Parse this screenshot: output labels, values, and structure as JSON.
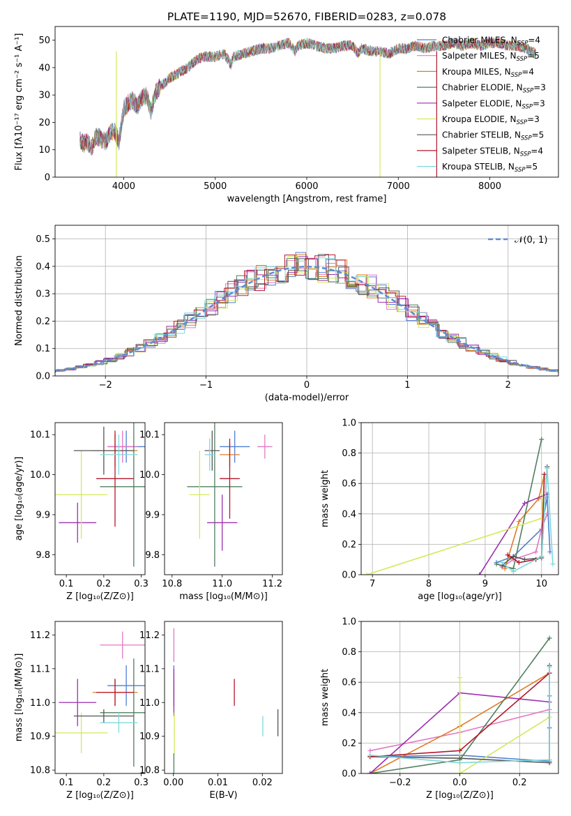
{
  "figure_title": "PLATE=1190, MJD=52670, FIBERID=0283, z=0.078",
  "colors": {
    "chabrier_miles": "#4c7fd4",
    "salpeter_miles": "#e377c2",
    "kroupa_miles": "#e07b28",
    "chabrier_elodie": "#4f7f5f",
    "salpeter_elodie": "#9b2fae",
    "kroupa_elodie": "#d4e95a",
    "chabrier_stelib": "#555555",
    "salpeter_stelib": "#b2182b",
    "kroupa_stelib": "#7fd8dc",
    "normal": "#5b8bd6"
  },
  "chart_data": [
    {
      "id": "spectrum",
      "type": "line",
      "title": "PLATE=1190, MJD=52670, FIBERID=0283, z=0.078",
      "xlabel": "wavelength [Angstrom, rest frame]",
      "ylabel": "Flux [fλ10⁻¹⁷ erg cm⁻² s⁻¹ A⁻¹]",
      "xlim": [
        3250,
        8750
      ],
      "ylim": [
        0,
        55
      ],
      "xticks": [
        "4000",
        "5000",
        "6000",
        "7000",
        "8000"
      ],
      "yticks": [
        "0",
        "10",
        "20",
        "30",
        "40",
        "50"
      ],
      "legend_position": "right",
      "x": [
        3520,
        3560,
        3600,
        3650,
        3700,
        3750,
        3800,
        3850,
        3900,
        3950,
        4000,
        4050,
        4100,
        4150,
        4200,
        4250,
        4300,
        4350,
        4400,
        4500,
        4600,
        4700,
        4800,
        4900,
        5000,
        5100,
        5170,
        5200,
        5300,
        5400,
        5500,
        5600,
        5700,
        5800,
        5870,
        5900,
        6000,
        6100,
        6200,
        6300,
        6400,
        6500,
        6563,
        6600,
        6700,
        6800,
        6900,
        7000,
        7100,
        7200,
        7300,
        7400,
        7500,
        7600,
        7700,
        7800,
        7900,
        8000,
        8100,
        8200,
        8300,
        8400,
        8500
      ],
      "y": [
        14,
        12,
        13,
        11,
        15,
        14,
        13,
        16,
        17,
        13,
        25,
        27,
        28,
        26,
        29,
        30,
        24,
        31,
        33,
        36,
        38,
        40,
        43,
        44,
        44,
        45,
        41,
        44,
        45,
        46,
        47,
        47,
        48,
        49,
        46,
        48,
        49,
        48,
        47,
        47,
        48,
        48,
        45,
        47,
        46,
        46,
        45,
        47,
        47,
        48,
        47,
        48,
        48,
        49,
        48,
        49,
        48,
        49,
        49,
        48,
        48,
        47,
        45
      ],
      "series": [
        {
          "name": "Chabrier MILES, N_SSP=4",
          "key": "chabrier_miles"
        },
        {
          "name": "Salpeter MILES, N_SSP=5",
          "key": "salpeter_miles"
        },
        {
          "name": "Kroupa MILES, N_SSP=4",
          "key": "kroupa_miles"
        },
        {
          "name": "Chabrier ELODIE, N_SSP=3",
          "key": "chabrier_elodie"
        },
        {
          "name": "Salpeter ELODIE, N_SSP=3",
          "key": "salpeter_elodie"
        },
        {
          "name": "Kroupa ELODIE, N_SSP=3",
          "key": "kroupa_elodie"
        },
        {
          "name": "Chabrier STELIB, N_SSP=5",
          "key": "chabrier_stelib"
        },
        {
          "name": "Salpeter STELIB, N_SSP=4",
          "key": "salpeter_stelib"
        },
        {
          "name": "Kroupa STELIB, N_SSP=5",
          "key": "kroupa_stelib"
        }
      ]
    },
    {
      "id": "residuals",
      "type": "bar",
      "xlabel": "(data-model)/error",
      "ylabel": "Normed distribution",
      "xlim": [
        -2.5,
        2.5
      ],
      "ylim": [
        0,
        0.55
      ],
      "xticks": [
        "−2",
        "−1",
        "0",
        "1",
        "2"
      ],
      "yticks": [
        "0.0",
        "0.1",
        "0.2",
        "0.3",
        "0.4",
        "0.5"
      ],
      "grid": true,
      "legend": "𝒩(0, 1)",
      "legend_position": "top-right",
      "bin_width": 0.1
    },
    {
      "id": "age_vs_Z",
      "type": "scatter",
      "xlabel": "Z [log₁₀(Z/Z⊙)]",
      "ylabel": "age  [log₁₀(age/yr)]",
      "xlim": [
        0.07,
        0.31
      ],
      "ylim": [
        9.75,
        10.13
      ],
      "xticks": [
        "0.1",
        "0.2",
        "0.3"
      ],
      "yticks": [
        "9.8",
        "9.9",
        "10.0",
        "10.1"
      ],
      "points": [
        {
          "key": "chabrier_miles",
          "x": 0.26,
          "xerr": 0.05,
          "y": 10.07,
          "yerr": 0.04
        },
        {
          "key": "salpeter_miles",
          "x": 0.25,
          "xerr": 0.04,
          "y": 10.07,
          "yerr": 0.04
        },
        {
          "key": "kroupa_miles",
          "x": 0.23,
          "xerr": 0.06,
          "y": 10.06,
          "yerr": 0.04
        },
        {
          "key": "chabrier_elodie",
          "x": 0.28,
          "xerr": 0.09,
          "y": 9.97,
          "yerr": 0.2
        },
        {
          "key": "salpeter_elodie",
          "x": 0.13,
          "xerr": 0.05,
          "y": 9.88,
          "yerr": 0.05
        },
        {
          "key": "kroupa_elodie",
          "x": 0.14,
          "xerr": 0.07,
          "y": 9.95,
          "yerr": 0.11
        },
        {
          "key": "chabrier_stelib",
          "x": 0.2,
          "xerr": 0.08,
          "y": 10.06,
          "yerr": 0.06
        },
        {
          "key": "salpeter_stelib",
          "x": 0.23,
          "xerr": 0.05,
          "y": 9.99,
          "yerr": 0.12
        },
        {
          "key": "kroupa_stelib",
          "x": 0.24,
          "xerr": 0.05,
          "y": 10.05,
          "yerr": 0.05
        }
      ]
    },
    {
      "id": "age_vs_mass",
      "type": "scatter",
      "xlabel": "mass [log₁₀(M/M⊙)]",
      "ylabel": "",
      "xlim": [
        10.77,
        11.24
      ],
      "ylim": [
        9.75,
        10.13
      ],
      "xticks": [
        "10.8",
        "11.0",
        "11.2"
      ],
      "yticks": [
        "9.8",
        "9.9",
        "10.0",
        "10.1"
      ],
      "points": [
        {
          "key": "chabrier_miles",
          "x": 11.05,
          "xerr": 0.06,
          "y": 10.07,
          "yerr": 0.04
        },
        {
          "key": "salpeter_miles",
          "x": 11.17,
          "xerr": 0.03,
          "y": 10.07,
          "yerr": 0.03
        },
        {
          "key": "kroupa_miles",
          "x": 11.03,
          "xerr": 0.04,
          "y": 10.05,
          "yerr": 0.03
        },
        {
          "key": "chabrier_elodie",
          "x": 10.97,
          "xerr": 0.11,
          "y": 9.97,
          "yerr": 0.2
        },
        {
          "key": "salpeter_elodie",
          "x": 11.0,
          "xerr": 0.06,
          "y": 9.88,
          "yerr": 0.07
        },
        {
          "key": "kroupa_elodie",
          "x": 10.91,
          "xerr": 0.04,
          "y": 9.95,
          "yerr": 0.11
        },
        {
          "key": "chabrier_stelib",
          "x": 10.96,
          "xerr": 0.03,
          "y": 10.06,
          "yerr": 0.05
        },
        {
          "key": "salpeter_stelib",
          "x": 11.03,
          "xerr": 0.04,
          "y": 9.99,
          "yerr": 0.1
        },
        {
          "key": "kroupa_stelib",
          "x": 10.95,
          "xerr": 0.02,
          "y": 10.05,
          "yerr": 0.04
        }
      ]
    },
    {
      "id": "weight_vs_age",
      "type": "line",
      "xlabel": "age  [log₁₀(age/yr)]",
      "ylabel": "mass weight",
      "xlim": [
        6.8,
        10.3
      ],
      "ylim": [
        0,
        1
      ],
      "xticks": [
        "7",
        "8",
        "9",
        "10"
      ],
      "yticks": [
        "0.0",
        "0.2",
        "0.4",
        "0.6",
        "0.8",
        "1.0"
      ],
      "grid": true,
      "series": [
        {
          "key": "chabrier_miles",
          "x": [
            9.2,
            9.5,
            10.0,
            10.1,
            10.15
          ],
          "y": [
            0.08,
            0.12,
            0.3,
            0.51,
            0.15
          ]
        },
        {
          "key": "salpeter_miles",
          "x": [
            9.3,
            9.5,
            9.9,
            10.0,
            10.1
          ],
          "y": [
            0.05,
            0.1,
            0.15,
            0.3,
            0.4
          ]
        },
        {
          "key": "kroupa_miles",
          "x": [
            9.35,
            9.6,
            9.95,
            10.05
          ],
          "y": [
            0.04,
            0.35,
            0.5,
            0.66
          ]
        },
        {
          "key": "chabrier_elodie",
          "x": [
            9.2,
            9.5,
            10.0
          ],
          "y": [
            0.07,
            0.04,
            0.89
          ]
        },
        {
          "key": "salpeter_elodie",
          "x": [
            8.9,
            9.7,
            10.1
          ],
          "y": [
            0.0,
            0.47,
            0.53
          ]
        },
        {
          "key": "kroupa_elodie",
          "x": [
            6.9,
            10.0,
            10.05
          ],
          "y": [
            0.0,
            0.37,
            0.63
          ]
        },
        {
          "key": "chabrier_stelib",
          "x": [
            9.3,
            9.5,
            9.7,
            10.0,
            10.1
          ],
          "y": [
            0.06,
            0.12,
            0.1,
            0.11,
            0.71
          ]
        },
        {
          "key": "salpeter_stelib",
          "x": [
            9.4,
            9.6,
            9.9,
            10.0,
            10.05
          ],
          "y": [
            0.13,
            0.08,
            0.1,
            0.12,
            0.66
          ]
        },
        {
          "key": "kroupa_stelib",
          "x": [
            9.3,
            9.5,
            10.0,
            10.1,
            10.2
          ],
          "y": [
            0.08,
            0.02,
            0.12,
            0.7,
            0.07
          ]
        }
      ]
    },
    {
      "id": "mass_vs_Z",
      "type": "scatter",
      "xlabel": "Z [log₁₀(Z/Z⊙)]",
      "ylabel": "mass [log₁₀(M/M⊙)]",
      "xlim": [
        0.07,
        0.31
      ],
      "ylim": [
        10.79,
        11.24
      ],
      "xticks": [
        "0.1",
        "0.2",
        "0.3"
      ],
      "yticks": [
        "10.8",
        "10.9",
        "11.0",
        "11.1",
        "11.2"
      ],
      "points": [
        {
          "key": "chabrier_miles",
          "x": 0.26,
          "xerr": 0.05,
          "y": 11.05,
          "yerr": 0.06
        },
        {
          "key": "salpeter_miles",
          "x": 0.25,
          "xerr": 0.06,
          "y": 11.17,
          "yerr": 0.04
        },
        {
          "key": "kroupa_miles",
          "x": 0.23,
          "xerr": 0.06,
          "y": 11.03,
          "yerr": 0.04
        },
        {
          "key": "chabrier_elodie",
          "x": 0.28,
          "xerr": 0.09,
          "y": 10.97,
          "yerr": 0.16
        },
        {
          "key": "salpeter_elodie",
          "x": 0.13,
          "xerr": 0.05,
          "y": 11.0,
          "yerr": 0.07
        },
        {
          "key": "kroupa_elodie",
          "x": 0.14,
          "xerr": 0.07,
          "y": 10.91,
          "yerr": 0.06
        },
        {
          "key": "chabrier_stelib",
          "x": 0.2,
          "xerr": 0.08,
          "y": 10.96,
          "yerr": 0.02
        },
        {
          "key": "salpeter_stelib",
          "x": 0.23,
          "xerr": 0.05,
          "y": 11.03,
          "yerr": 0.04
        },
        {
          "key": "kroupa_stelib",
          "x": 0.24,
          "xerr": 0.05,
          "y": 10.94,
          "yerr": 0.03
        }
      ]
    },
    {
      "id": "mass_vs_ebv",
      "type": "scatter",
      "xlabel": "E(B-V)",
      "ylabel": "",
      "xlim": [
        -0.002,
        0.0245
      ],
      "ylim": [
        10.79,
        11.24
      ],
      "xticks": [
        "0.00",
        "0.01",
        "0.02"
      ],
      "yticks": [
        "10.8",
        "10.9",
        "11.0",
        "11.1",
        "11.2"
      ],
      "points": [
        {
          "key": "chabrier_miles",
          "x": 0.0001,
          "xerr": 0.0001,
          "y": 11.05,
          "yerr": 0.06
        },
        {
          "key": "salpeter_miles",
          "x": 0.0001,
          "xerr": 0.0001,
          "y": 11.17,
          "yerr": 0.05
        },
        {
          "key": "kroupa_miles",
          "x": 0.0001,
          "xerr": 0.0001,
          "y": 11.03,
          "yerr": 0.04
        },
        {
          "key": "chabrier_elodie",
          "x": 0.0001,
          "xerr": 0.0001,
          "y": 10.82,
          "yerr": 0.03
        },
        {
          "key": "salpeter_elodie",
          "x": 0.0001,
          "xerr": 0.0001,
          "y": 11.03,
          "yerr": 0.07
        },
        {
          "key": "kroupa_elodie",
          "x": 0.0002,
          "xerr": 0.0001,
          "y": 10.91,
          "yerr": 0.06
        },
        {
          "key": "chabrier_stelib",
          "x": 0.0235,
          "xerr": 0.0001,
          "y": 10.94,
          "yerr": 0.04
        },
        {
          "key": "salpeter_stelib",
          "x": 0.0137,
          "xerr": 0.0001,
          "y": 11.03,
          "yerr": 0.04
        },
        {
          "key": "kroupa_stelib",
          "x": 0.0201,
          "xerr": 0.0001,
          "y": 10.93,
          "yerr": 0.03
        }
      ]
    },
    {
      "id": "weight_vs_Z",
      "type": "line",
      "xlabel": "Z [log₁₀(Z/Z⊙)]",
      "ylabel": "mass weight",
      "xlim": [
        -0.33,
        0.33
      ],
      "ylim": [
        0,
        1
      ],
      "xticks": [
        "−0.2",
        "0.0",
        "0.2"
      ],
      "yticks": [
        "0.0",
        "0.2",
        "0.4",
        "0.6",
        "0.8",
        "1.0"
      ],
      "grid": true,
      "series": [
        {
          "key": "chabrier_miles",
          "x": [
            -0.3,
            0.0,
            0.3,
            0.3,
            0.3
          ],
          "y": [
            0.11,
            0.12,
            0.08,
            0.3,
            0.51
          ]
        },
        {
          "key": "salpeter_miles",
          "x": [
            -0.3,
            0.0,
            0.3
          ],
          "y": [
            0.15,
            0.27,
            0.42
          ]
        },
        {
          "key": "kroupa_miles",
          "x": [
            -0.3,
            0.0,
            0.3
          ],
          "y": [
            0.0,
            0.31,
            0.66
          ]
        },
        {
          "key": "chabrier_elodie",
          "x": [
            -0.3,
            0.0,
            0.3
          ],
          "y": [
            0.0,
            0.09,
            0.89
          ]
        },
        {
          "key": "salpeter_elodie",
          "x": [
            -0.3,
            0.0,
            0.3
          ],
          "y": [
            0.0,
            0.53,
            0.47
          ]
        },
        {
          "key": "kroupa_elodie",
          "x": [
            0.0,
            0.0,
            0.3
          ],
          "y": [
            0.63,
            0.0,
            0.37
          ]
        },
        {
          "key": "chabrier_stelib",
          "x": [
            -0.3,
            0.0,
            0.3,
            0.3
          ],
          "y": [
            0.11,
            0.1,
            0.07,
            0.71
          ]
        },
        {
          "key": "salpeter_stelib",
          "x": [
            -0.3,
            0.0,
            0.3
          ],
          "y": [
            0.11,
            0.15,
            0.66
          ]
        },
        {
          "key": "kroupa_stelib",
          "x": [
            -0.3,
            0.0,
            0.3,
            0.3
          ],
          "y": [
            0.12,
            0.07,
            0.09,
            0.7
          ]
        }
      ]
    }
  ]
}
